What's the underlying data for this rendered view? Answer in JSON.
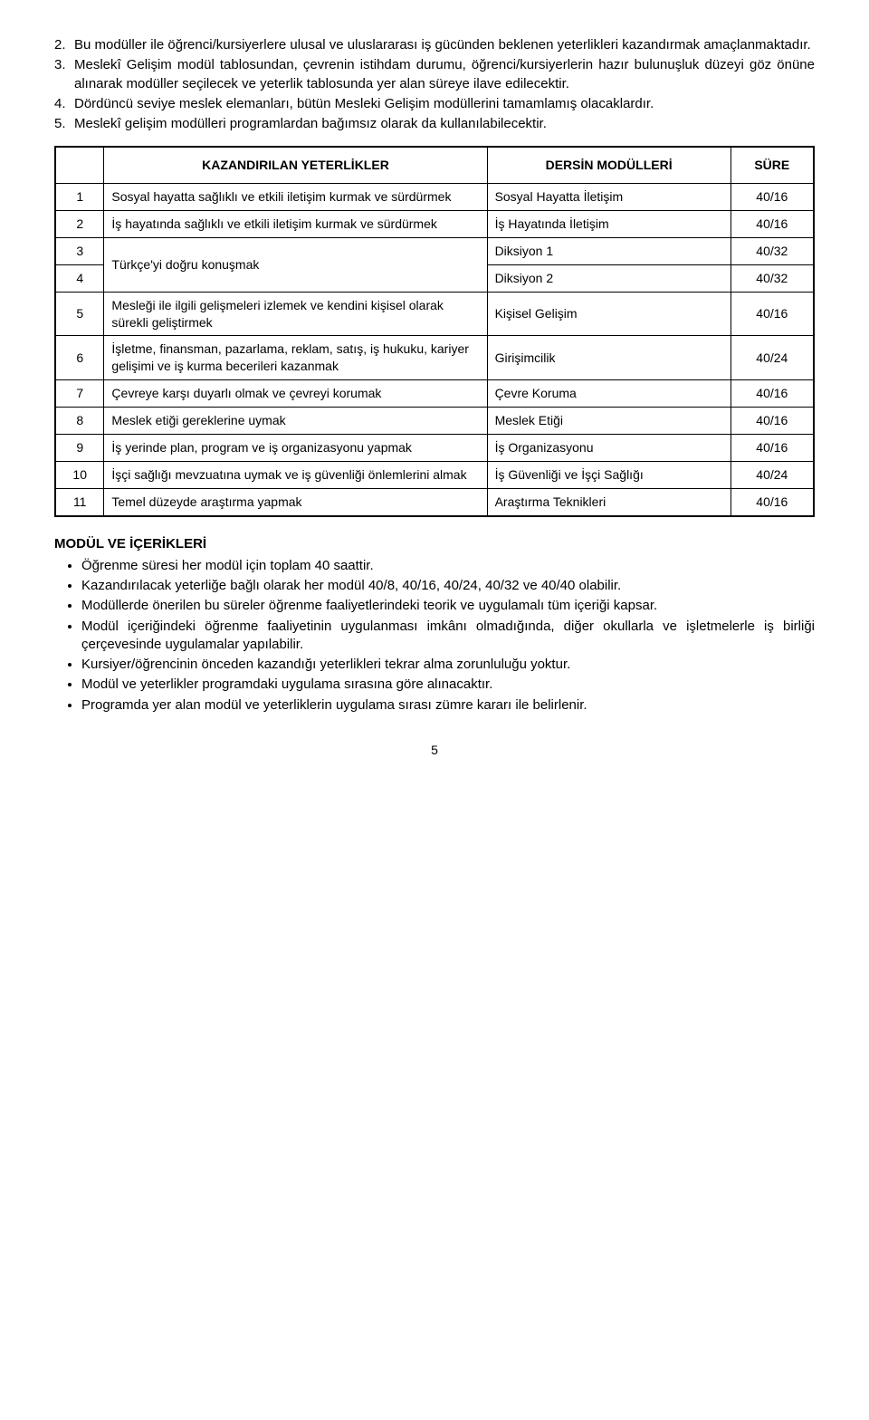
{
  "notes": [
    {
      "n": "2.",
      "text": "Bu modüller ile öğrenci/kursiyerlere ulusal ve uluslararası iş gücünden beklenen yeterlikleri kazandırmak amaçlanmaktadır.",
      "spread": true
    },
    {
      "n": "3.",
      "text": "Meslekî Gelişim modül tablosundan, çevrenin istihdam durumu, öğrenci/kursiyerlerin hazır bulunuşluk düzeyi göz önüne alınarak modüller seçilecek ve yeterlik tablosunda yer alan süreye ilave edilecektir.",
      "spread": true
    },
    {
      "n": "4.",
      "text": "Dördüncü seviye meslek elemanları, bütün Mesleki Gelişim modüllerini tamamlamış olacaklardır.",
      "spread": true
    },
    {
      "n": "5.",
      "text": "Meslekî gelişim modülleri programlardan bağımsız olarak da kullanılabilecektir.",
      "spread": true
    }
  ],
  "table": {
    "head_competency": "KAZANDIRILAN YETERLİKLER",
    "head_module": "DERSİN MODÜLLERİ",
    "head_duration": "SÜRE",
    "rows": [
      {
        "idx": "1",
        "competency": "Sosyal hayatta sağlıklı ve etkili iletişim kurmak ve sürdürmek",
        "module": "Sosyal Hayatta İletişim",
        "duration": "40/16"
      },
      {
        "idx": "2",
        "competency": "İş hayatında sağlıklı ve etkili iletişim kurmak ve sürdürmek",
        "module": "İş Hayatında İletişim",
        "duration": "40/16"
      },
      {
        "idx": "3",
        "competency": "Türkçe'yi doğru konuşmak",
        "module": "Diksiyon 1",
        "duration": "40/32",
        "rowspan_comp": 2
      },
      {
        "idx": "4",
        "competency": null,
        "module": "Diksiyon 2",
        "duration": "40/32"
      },
      {
        "idx": "5",
        "competency": "Mesleği ile ilgili gelişmeleri izlemek ve kendini kişisel olarak sürekli geliştirmek",
        "module": "Kişisel Gelişim",
        "duration": "40/16"
      },
      {
        "idx": "6",
        "competency": "İşletme, finansman, pazarlama, reklam, satış, iş hukuku, kariyer gelişimi ve iş kurma becerileri kazanmak",
        "module": "Girişimcilik",
        "duration": "40/24"
      },
      {
        "idx": "7",
        "competency": "Çevreye karşı duyarlı olmak ve çevreyi korumak",
        "module": "Çevre Koruma",
        "duration": "40/16"
      },
      {
        "idx": "8",
        "competency": "Meslek etiği gereklerine uymak",
        "module": "Meslek Etiği",
        "duration": "40/16"
      },
      {
        "idx": "9",
        "competency": "İş yerinde plan, program ve iş organizasyonu yapmak",
        "module": "İş Organizasyonu",
        "duration": "40/16"
      },
      {
        "idx": "10",
        "competency": "İşçi sağlığı mevzuatına uymak ve iş güvenliği önlemlerini almak",
        "module": "İş Güvenliği ve İşçi Sağlığı",
        "duration": "40/24"
      },
      {
        "idx": "11",
        "competency": "Temel düzeyde araştırma yapmak",
        "module": "Araştırma Teknikleri",
        "duration": "40/16"
      }
    ]
  },
  "section_heading": "MODÜL VE İÇERİKLERİ",
  "bullets": [
    "Öğrenme süresi her modül için toplam 40 saattir.",
    "Kazandırılacak yeterliğe bağlı olarak her modül 40/8, 40/16, 40/24, 40/32 ve 40/40 olabilir.",
    "Modüllerde önerilen bu süreler öğrenme faaliyetlerindeki teorik ve uygulamalı tüm içeriği kapsar.",
    "Modül içeriğindeki öğrenme faaliyetinin uygulanması imkânı olmadığında, diğer okullarla ve işletmelerle iş birliği çerçevesinde uygulamalar yapılabilir.",
    "Kursiyer/öğrencinin önceden kazandığı yeterlikleri tekrar alma zorunluluğu yoktur.",
    "Modül ve yeterlikler programdaki uygulama sırasına göre alınacaktır.",
    "Programda yer alan modül ve yeterliklerin uygulama sırası zümre kararı ile belirlenir."
  ],
  "page_number": "5"
}
